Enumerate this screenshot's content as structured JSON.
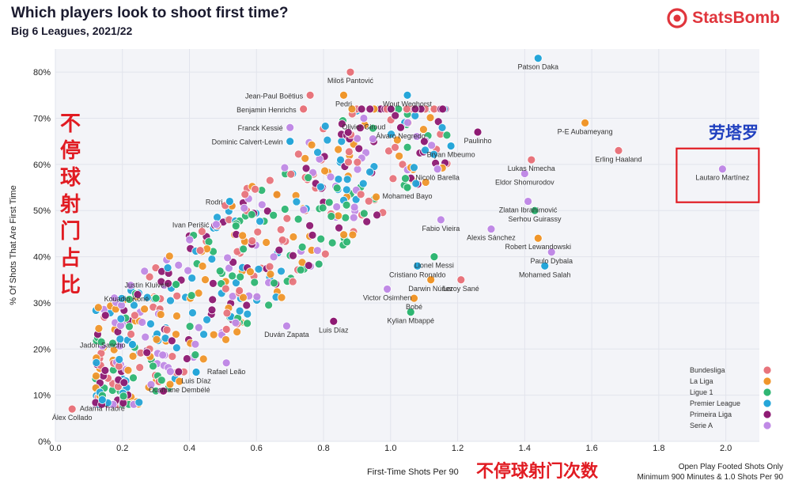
{
  "header": {
    "title": "Which players look to shoot first time?",
    "subtitle": "Big 6 Leagues, 2021/22",
    "brand": "StatsBomb"
  },
  "annotations": {
    "cn_y_chars": [
      "不",
      "停",
      "球",
      "射",
      "门",
      "占",
      "比"
    ],
    "cn_x": "不停球射门次数",
    "cn_highlight": "劳塔罗"
  },
  "footnote": {
    "line1": "Open Play Footed Shots Only",
    "line2": "Minimum 900 Minutes & 1.0 Shots Per 90"
  },
  "colors": {
    "Bundesliga": "#e8747c",
    "La Liga": "#f0962a",
    "Ligue 1": "#2fb673",
    "Premier League": "#25a6d9",
    "Primeira Liga": "#8e1a73",
    "Serie A": "#c08ae6",
    "highlight_box": "#e11b22"
  },
  "chart_data": {
    "type": "scatter",
    "title": "Which players look to shoot first time?",
    "subtitle": "Big 6 Leagues, 2021/22",
    "xlabel": "First-Time Shots Per 90",
    "ylabel": "% Of Shots That Are First Time",
    "xlim": [
      0.0,
      2.1
    ],
    "ylim": [
      0,
      0.85
    ],
    "xticks": [
      "0.0",
      "0.2",
      "0.4",
      "0.6",
      "0.8",
      "1.0",
      "1.2",
      "1.4",
      "1.6",
      "1.8",
      "2.0"
    ],
    "yticks": [
      "0%",
      "10%",
      "20%",
      "30%",
      "40%",
      "50%",
      "60%",
      "70%",
      "80%"
    ],
    "grid": true,
    "legend": {
      "position": "bottom-right",
      "entries": [
        "Bundesliga",
        "La Liga",
        "Ligue 1",
        "Premier League",
        "Primeira Liga",
        "Serie A"
      ]
    },
    "labeled_points": [
      {
        "name": "Patson Daka",
        "x": 1.44,
        "y": 0.83,
        "league": "Premier League"
      },
      {
        "name": "Miloš Pantović",
        "x": 0.88,
        "y": 0.8,
        "league": "Bundesliga"
      },
      {
        "name": "Jean-Paul Boëtius",
        "x": 0.76,
        "y": 0.75,
        "league": "Bundesliga"
      },
      {
        "name": "Pedri",
        "x": 0.86,
        "y": 0.75,
        "league": "La Liga"
      },
      {
        "name": "Wout Weghorst",
        "x": 1.05,
        "y": 0.75,
        "league": "Premier League"
      },
      {
        "name": "Benjamin Henrichs",
        "x": 0.74,
        "y": 0.72,
        "league": "Bundesliga"
      },
      {
        "name": "Olivier Giroud",
        "x": 0.92,
        "y": 0.7,
        "league": "Serie A"
      },
      {
        "name": "Álvaro Negredo",
        "x": 1.03,
        "y": 0.68,
        "league": "Primeira Liga"
      },
      {
        "name": "P-E Aubameyang",
        "x": 1.58,
        "y": 0.69,
        "league": "La Liga"
      },
      {
        "name": "Franck Kessié",
        "x": 0.7,
        "y": 0.68,
        "league": "Serie A"
      },
      {
        "name": "Paulinho",
        "x": 1.26,
        "y": 0.67,
        "league": "Primeira Liga"
      },
      {
        "name": "Dominic Calvert-Lewin",
        "x": 0.7,
        "y": 0.65,
        "league": "Premier League"
      },
      {
        "name": "Bryan Mbeumo",
        "x": 1.18,
        "y": 0.64,
        "league": "Premier League"
      },
      {
        "name": "Erling Haaland",
        "x": 1.68,
        "y": 0.63,
        "league": "Bundesliga"
      },
      {
        "name": "Lukas Nmecha",
        "x": 1.42,
        "y": 0.61,
        "league": "Bundesliga"
      },
      {
        "name": "Nicolò Barella",
        "x": 1.14,
        "y": 0.59,
        "league": "Serie A"
      },
      {
        "name": "Eldor Shomurodov",
        "x": 1.4,
        "y": 0.58,
        "league": "Serie A"
      },
      {
        "name": "Lautaro Martínez",
        "x": 1.99,
        "y": 0.59,
        "league": "Serie A"
      },
      {
        "name": "Mohamed Bayo",
        "x": 1.05,
        "y": 0.55,
        "league": "Ligue 1"
      },
      {
        "name": "Rodri",
        "x": 0.52,
        "y": 0.52,
        "league": "Premier League"
      },
      {
        "name": "Zlatan Ibrahimović",
        "x": 1.41,
        "y": 0.52,
        "league": "Serie A"
      },
      {
        "name": "Serhou Guirassy",
        "x": 1.43,
        "y": 0.5,
        "league": "Ligue 1"
      },
      {
        "name": "Fabio Vieira",
        "x": 1.15,
        "y": 0.48,
        "league": "Serie A"
      },
      {
        "name": "Ivan Perišić",
        "x": 0.48,
        "y": 0.47,
        "league": "Serie A"
      },
      {
        "name": "Alexis Sánchez",
        "x": 1.3,
        "y": 0.46,
        "league": "Serie A"
      },
      {
        "name": "Robert Lewandowski",
        "x": 1.44,
        "y": 0.44,
        "league": "La Liga"
      },
      {
        "name": "Paulo Dybala",
        "x": 1.48,
        "y": 0.41,
        "league": "Serie A"
      },
      {
        "name": "Lionel Messi",
        "x": 1.13,
        "y": 0.4,
        "league": "Ligue 1"
      },
      {
        "name": "Cristiano Ronaldo",
        "x": 1.08,
        "y": 0.38,
        "league": "Premier League"
      },
      {
        "name": "Mohamed Salah",
        "x": 1.46,
        "y": 0.38,
        "league": "Premier League"
      },
      {
        "name": "Darwin Núñez",
        "x": 1.12,
        "y": 0.35,
        "league": "La Liga"
      },
      {
        "name": "Justin Kluivert",
        "x": 0.36,
        "y": 0.34,
        "league": "Ligue 1"
      },
      {
        "name": "Leroy Sané",
        "x": 1.21,
        "y": 0.35,
        "league": "Bundesliga"
      },
      {
        "name": "Kouadio Koné",
        "x": 0.3,
        "y": 0.31,
        "league": "Ligue 1"
      },
      {
        "name": "Victor Osimhen",
        "x": 0.99,
        "y": 0.33,
        "league": "Serie A"
      },
      {
        "name": "Bobé",
        "x": 1.07,
        "y": 0.31,
        "league": "La Liga"
      },
      {
        "name": "Kylian Mbappé",
        "x": 1.06,
        "y": 0.28,
        "league": "Ligue 1"
      },
      {
        "name": "Luis Díaz",
        "x": 0.83,
        "y": 0.26,
        "league": "Primeira Liga"
      },
      {
        "name": "Duván Zapata",
        "x": 0.69,
        "y": 0.25,
        "league": "Serie A"
      },
      {
        "name": "Jadon Sancho",
        "x": 0.23,
        "y": 0.21,
        "league": "Premier League"
      },
      {
        "name": "Rafael Leão",
        "x": 0.51,
        "y": 0.17,
        "league": "Serie A"
      },
      {
        "name": "Luis Díaz",
        "x": 0.42,
        "y": 0.15,
        "league": "Premier League"
      },
      {
        "name": "Ousmane Dembélé",
        "x": 0.37,
        "y": 0.13,
        "league": "La Liga"
      },
      {
        "name": "Adama Traoré",
        "x": 0.14,
        "y": 0.09,
        "league": "Premier League"
      },
      {
        "name": "Álex Collado",
        "x": 0.05,
        "y": 0.07,
        "league": "Bundesliga"
      }
    ],
    "highlighted": "Lautaro Martínez"
  }
}
